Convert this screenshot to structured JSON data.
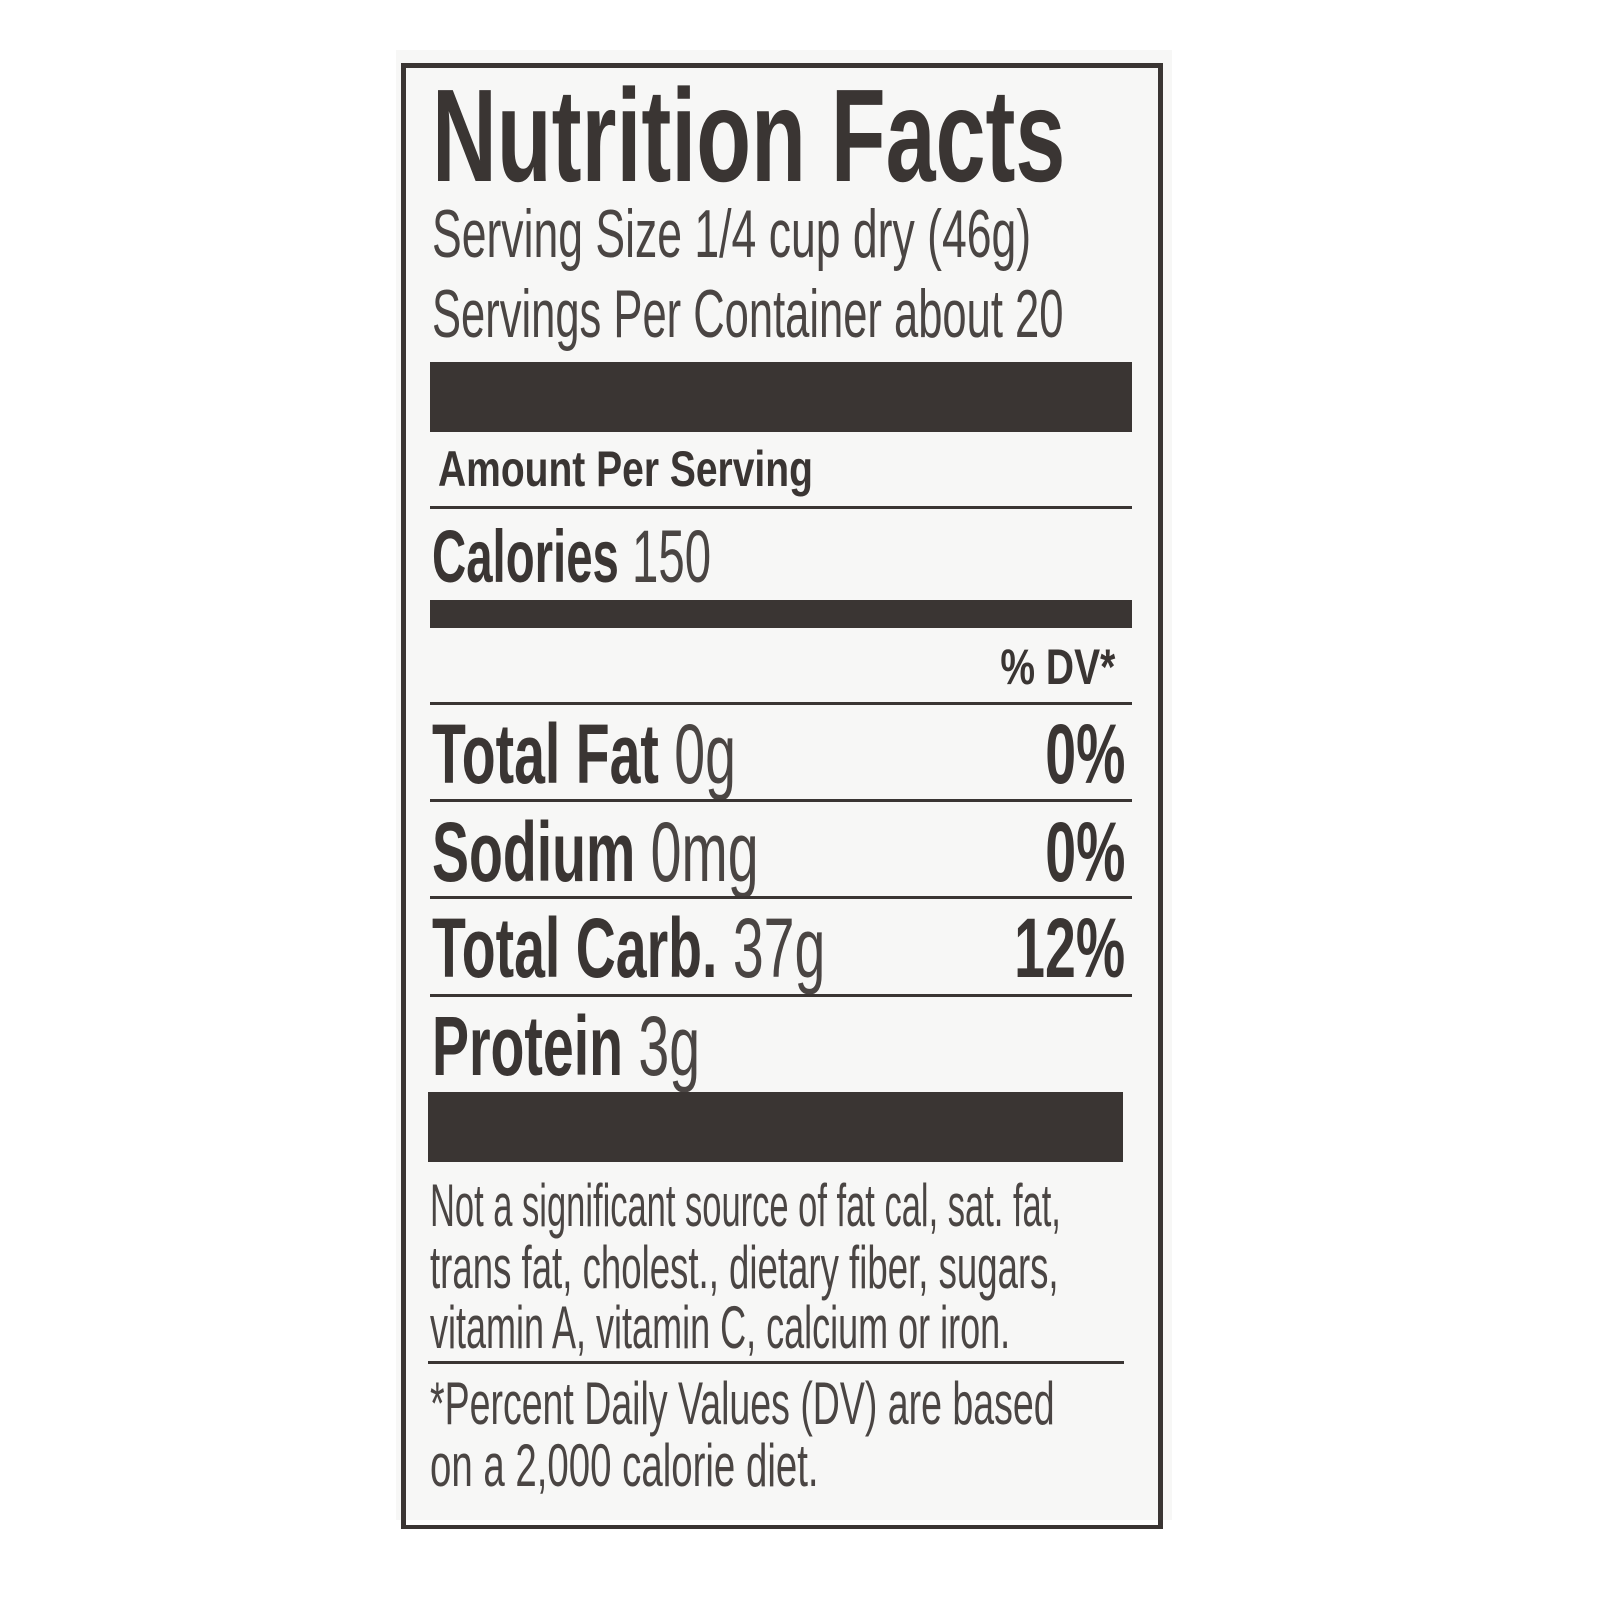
{
  "label": {
    "title": "Nutrition Facts",
    "serving_size": "Serving Size 1/4 cup dry (46g)",
    "servings_per_container": "Servings Per Container about 20",
    "amount_per_serving": "Amount Per Serving",
    "calories": {
      "label": "Calories",
      "value": "150"
    },
    "dv_header": "% DV*",
    "nutrients": [
      {
        "name": "Total Fat",
        "amount": "0g",
        "dv": "0%"
      },
      {
        "name": "Sodium",
        "amount": "0mg",
        "dv": "0%"
      },
      {
        "name": "Total Carb.",
        "amount": "37g",
        "dv": "12%"
      },
      {
        "name": "Protein",
        "amount": "3g",
        "dv": ""
      }
    ],
    "footnote_lines": [
      "Not a significant source of fat cal, sat. fat,",
      "trans fat, cholest., dietary fiber, sugars,",
      "vitamin A, vitamin C, calcium or iron."
    ],
    "dv_note_lines": [
      "*Percent Daily Values (DV) are based",
      "on a 2,000 calorie diet."
    ]
  },
  "colors": {
    "ink": "#3a3533",
    "background": "#f7f7f6"
  }
}
